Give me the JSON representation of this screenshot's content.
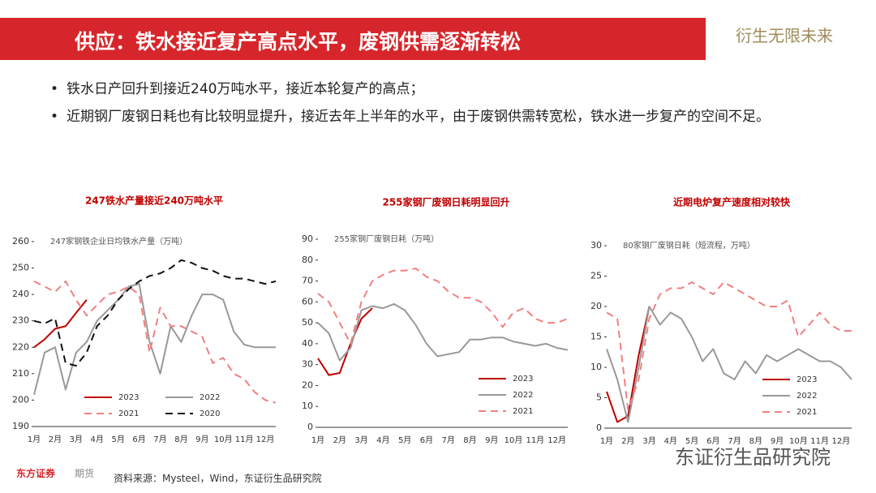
{
  "slide": {
    "title": "供应：铁水接近复产高点水平，废钢供需逐渐转松",
    "slogan": "衍生无限未来",
    "bullets": [
      "铁水日产回升到接近240万吨水平，接近本轮复产的高点；",
      "近期钢厂废钢日耗也有比较明显提升，接近去年上半年的水平，由于废钢供需转宽松，铁水进一步复产的空间不足。"
    ],
    "source": "资料来源：Mysteel，Wind，东证衍生品研究院",
    "logo": "东方证券",
    "logo_sub": "期货",
    "watermark": "东证衍生品研究院"
  },
  "chart_data": [
    {
      "type": "line",
      "title": "247铁水产量接近240万吨水平",
      "subtitle": "247家钢铁企业日均铁水产量（万吨）",
      "categories": [
        "1月",
        null,
        "2月",
        null,
        "3月",
        null,
        "4月",
        null,
        "5月",
        null,
        "6月",
        null,
        "7月",
        null,
        "8月",
        null,
        "9月",
        null,
        "10月",
        null,
        "11月",
        null,
        "12月",
        null
      ],
      "ylim": [
        190,
        260
      ],
      "yticks": [
        190,
        200,
        210,
        220,
        230,
        240,
        250,
        260
      ],
      "legend": "lower left",
      "series": [
        {
          "name": "2023",
          "color": "#c00000",
          "dash": false,
          "values": [
            220,
            223,
            227,
            228,
            233,
            238,
            null,
            null,
            null,
            null,
            null,
            null,
            null,
            null,
            null,
            null,
            null,
            null,
            null,
            null,
            null,
            null,
            null,
            null
          ]
        },
        {
          "name": "2022",
          "color": "#999999",
          "dash": false,
          "values": [
            202,
            218,
            220,
            204,
            218,
            222,
            230,
            234,
            238,
            243,
            244,
            222,
            210,
            228,
            222,
            232,
            240,
            240,
            238,
            226,
            221,
            220,
            220,
            220
          ]
        },
        {
          "name": "2021",
          "color": "#f08080",
          "dash": true,
          "values": [
            245,
            243,
            241,
            245,
            238,
            232,
            236,
            240,
            241,
            243,
            240,
            218,
            235,
            228,
            228,
            226,
            224,
            214,
            216,
            210,
            208,
            203,
            200,
            199
          ]
        },
        {
          "name": "2020",
          "color": "#111111",
          "dash": true,
          "values": [
            230,
            229,
            231,
            214,
            213,
            218,
            228,
            232,
            238,
            242,
            245,
            247,
            248,
            250,
            253,
            252,
            250,
            249,
            247,
            246,
            246,
            245,
            244,
            245
          ]
        }
      ]
    },
    {
      "type": "line",
      "title": "255家钢厂废钢日耗明显回升",
      "subtitle": "255家钢厂废钢日耗（万吨）",
      "categories": [
        "1月",
        null,
        "2月",
        null,
        "3月",
        null,
        "4月",
        null,
        "5月",
        null,
        "6月",
        null,
        "7月",
        null,
        "8月",
        null,
        "9月",
        null,
        "10月",
        null,
        "11月",
        null,
        "12月",
        null
      ],
      "ylim": [
        0,
        90
      ],
      "yticks": [
        0,
        10,
        20,
        30,
        40,
        50,
        60,
        70,
        80,
        90
      ],
      "legend": "lower right",
      "series": [
        {
          "name": "2023",
          "color": "#c00000",
          "dash": false,
          "values": [
            33,
            25,
            26,
            40,
            52,
            57,
            null,
            null,
            null,
            null,
            null,
            null,
            null,
            null,
            null,
            null,
            null,
            null,
            null,
            null,
            null,
            null,
            null,
            null
          ]
        },
        {
          "name": "2022",
          "color": "#999999",
          "dash": false,
          "values": [
            50,
            45,
            32,
            38,
            56,
            58,
            57,
            59,
            56,
            49,
            40,
            34,
            35,
            36,
            42,
            42,
            43,
            43,
            41,
            40,
            39,
            40,
            38,
            37
          ]
        },
        {
          "name": "2021",
          "color": "#f08080",
          "dash": true,
          "values": [
            64,
            60,
            50,
            40,
            60,
            70,
            73,
            75,
            75,
            76,
            72,
            70,
            65,
            62,
            62,
            60,
            55,
            48,
            55,
            57,
            52,
            50,
            50,
            52
          ]
        }
      ]
    },
    {
      "type": "line",
      "title": "近期电炉复产速度相对较快",
      "subtitle": "80家钢厂废钢日耗（短流程，万吨）",
      "categories": [
        "1月",
        null,
        "2月",
        null,
        "3月",
        null,
        "4月",
        null,
        "5月",
        null,
        "6月",
        null,
        "7月",
        null,
        "8月",
        null,
        "9月",
        null,
        "10月",
        null,
        "11月",
        null,
        "12月",
        null
      ],
      "ylim": [
        0,
        30
      ],
      "yticks": [
        0,
        5,
        10,
        15,
        20,
        25,
        30
      ],
      "legend": "lower right",
      "series": [
        {
          "name": "2023",
          "color": "#c00000",
          "dash": false,
          "values": [
            6,
            1,
            2,
            12,
            20,
            null,
            null,
            null,
            null,
            null,
            null,
            null,
            null,
            null,
            null,
            null,
            null,
            null,
            null,
            null,
            null,
            null,
            null,
            null
          ]
        },
        {
          "name": "2022",
          "color": "#999999",
          "dash": false,
          "values": [
            13,
            8,
            1,
            10,
            20,
            17,
            19,
            18,
            15,
            11,
            13,
            9,
            8,
            11,
            9,
            12,
            11,
            12,
            13,
            12,
            11,
            11,
            10,
            8
          ]
        },
        {
          "name": "2021",
          "color": "#f08080",
          "dash": true,
          "values": [
            19,
            18,
            3,
            8,
            18,
            22,
            23,
            23,
            24,
            23,
            22,
            24,
            23,
            22,
            21,
            20,
            20,
            21,
            15,
            17,
            19,
            17,
            16,
            16
          ]
        }
      ]
    }
  ]
}
